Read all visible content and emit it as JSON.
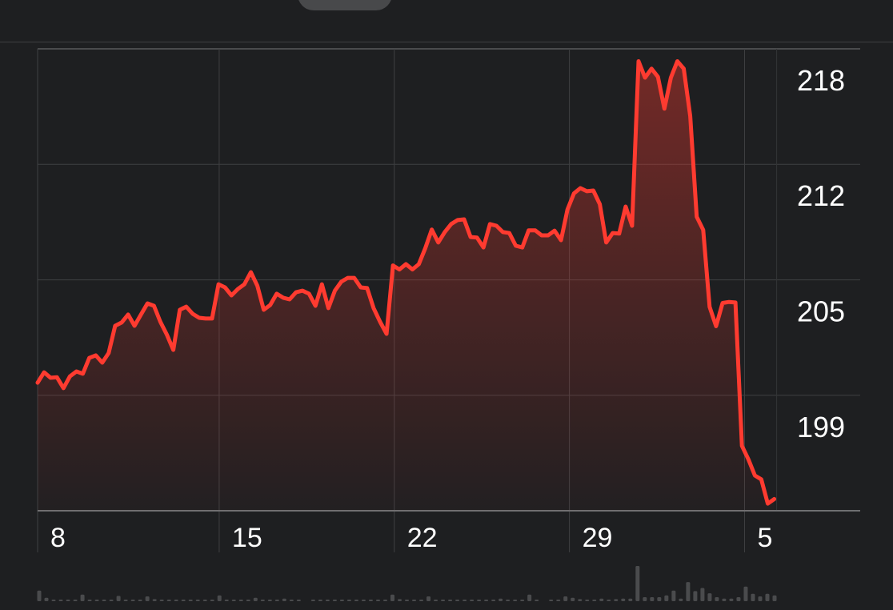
{
  "chart_data": {
    "type": "area",
    "colors": {
      "line": "#ff3b30",
      "fill": "#ff3b30",
      "background": "#1e1f21",
      "grid": "#3f4042",
      "volume": "#4a4b4d"
    },
    "grid": true,
    "y_axis_position": "right",
    "ylim": [
      192.67,
      218
    ],
    "y_ticks": [
      218,
      211.67,
      205.33,
      199
    ],
    "y_tick_labels": [
      "218",
      "212",
      "205",
      "199"
    ],
    "xlim": [
      0,
      127.3
    ],
    "x_ticks": [
      0,
      28.1,
      55.2,
      82.3,
      109.4
    ],
    "x_tick_labels": [
      "8",
      "15",
      "22",
      "29",
      "5"
    ],
    "values": [
      199.69,
      200.26,
      199.96,
      199.99,
      199.39,
      200.04,
      200.31,
      200.18,
      201.05,
      201.19,
      200.79,
      201.32,
      202.81,
      202.99,
      203.43,
      202.81,
      203.43,
      204.04,
      203.91,
      203.03,
      202.33,
      201.49,
      203.69,
      203.86,
      203.47,
      203.25,
      203.21,
      203.21,
      205.09,
      204.92,
      204.48,
      204.83,
      205.09,
      205.75,
      205.01,
      203.69,
      203.95,
      204.57,
      204.35,
      204.26,
      204.65,
      204.74,
      204.57,
      203.91,
      205.09,
      203.78,
      204.74,
      205.23,
      205.44,
      205.44,
      204.92,
      204.88,
      203.78,
      203.03,
      202.37,
      206.12,
      205.9,
      206.19,
      205.9,
      206.19,
      207.07,
      208.09,
      207.38,
      207.95,
      208.39,
      208.61,
      208.65,
      207.68,
      207.65,
      207.11,
      208.39,
      208.3,
      207.95,
      207.9,
      207.2,
      207.11,
      208.05,
      208.05,
      207.77,
      207.77,
      208.03,
      207.51,
      209.19,
      210.07,
      210.36,
      210.19,
      210.23,
      209.48,
      207.38,
      207.9,
      207.87,
      209.35,
      208.3,
      217.32,
      216.42,
      216.91,
      216.47,
      214.72,
      216.42,
      217.32,
      216.91,
      214.31,
      208.79,
      208.07,
      203.85,
      202.79,
      204.06,
      204.12,
      204.09,
      196.23,
      195.49,
      194.6,
      194.39,
      193.06,
      193.31
    ],
    "volume_relative": [
      40,
      13,
      3,
      3,
      5,
      5,
      25,
      3,
      3,
      3,
      5,
      20,
      3,
      3,
      3,
      18,
      8,
      3,
      3,
      3,
      5,
      3,
      3,
      3,
      5,
      22,
      3,
      3,
      3,
      3,
      13,
      3,
      3,
      3,
      10,
      3,
      3,
      0,
      2,
      2,
      3,
      3,
      3,
      5,
      3,
      3,
      3,
      3,
      5,
      25,
      8,
      3,
      3,
      5,
      18,
      5,
      3,
      3,
      3,
      5,
      3,
      3,
      5,
      3,
      10,
      3,
      3,
      3,
      25,
      5,
      0,
      2,
      3,
      18,
      13,
      8,
      5,
      5,
      10,
      5,
      8,
      10,
      10,
      133,
      15,
      15,
      15,
      22,
      40,
      10,
      72,
      38,
      50,
      30,
      15,
      10,
      10,
      15,
      55,
      28,
      18,
      28,
      22
    ]
  }
}
